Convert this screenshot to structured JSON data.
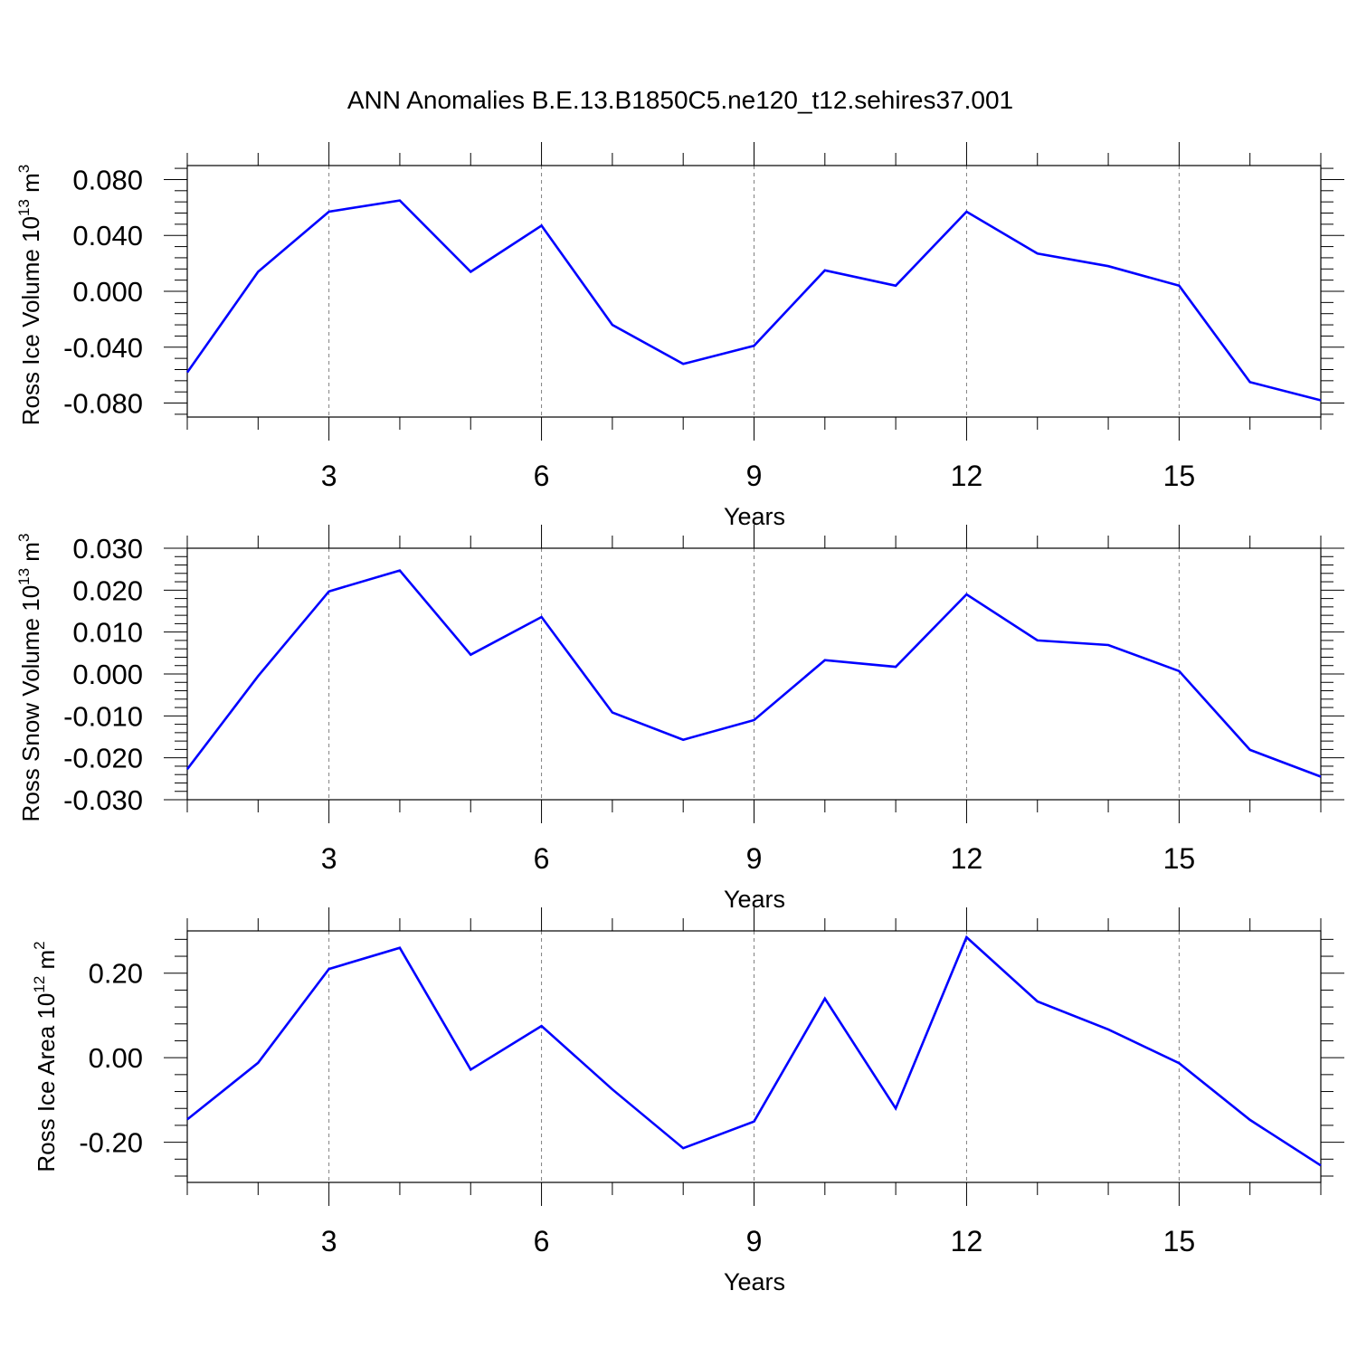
{
  "figure": {
    "title": "ANN Anomalies B.E.13.B1850C5.ne120_t12.sehires37.001"
  },
  "colors": {
    "series": "#0000ff",
    "axis": "#000000",
    "grid": "#808080",
    "background": "#ffffff"
  },
  "chart_data": [
    {
      "type": "line",
      "title": "",
      "xlabel": "Years",
      "ylabel": {
        "text": "Ross Ice Volume 10",
        "exponent": "13",
        "unit": " m",
        "unit_exponent": "3"
      },
      "xlim": [
        1,
        17
      ],
      "ylim": [
        -0.09,
        0.09
      ],
      "x_ticks": [
        3,
        6,
        9,
        12,
        15
      ],
      "x_tick_labels": [
        "3",
        "6",
        "9",
        "12",
        "15"
      ],
      "y_ticks": [
        -0.08,
        -0.04,
        0.0,
        0.04,
        0.08
      ],
      "y_tick_labels": [
        "-0.080",
        "-0.040",
        "0.000",
        "0.040",
        "0.080"
      ],
      "grid": "vertical dashed at labeled x ticks",
      "x": [
        1,
        2,
        3,
        4,
        5,
        6,
        7,
        8,
        9,
        10,
        11,
        12,
        13,
        14,
        15,
        16,
        17
      ],
      "series": [
        {
          "values": [
            -0.058,
            0.014,
            0.057,
            0.065,
            0.014,
            0.047,
            -0.024,
            -0.052,
            -0.039,
            0.015,
            0.004,
            0.057,
            0.027,
            0.018,
            0.004,
            -0.065,
            -0.078
          ]
        }
      ]
    },
    {
      "type": "line",
      "title": "",
      "xlabel": "Years",
      "ylabel": {
        "text": "Ross Snow Volume 10",
        "exponent": "13",
        "unit": " m",
        "unit_exponent": "3"
      },
      "xlim": [
        1,
        17
      ],
      "ylim": [
        -0.03,
        0.03
      ],
      "x_ticks": [
        3,
        6,
        9,
        12,
        15
      ],
      "x_tick_labels": [
        "3",
        "6",
        "9",
        "12",
        "15"
      ],
      "y_ticks": [
        -0.03,
        -0.02,
        -0.01,
        0.0,
        0.01,
        0.02,
        0.03
      ],
      "y_tick_labels": [
        "-0.030",
        "-0.020",
        "-0.010",
        "0.000",
        "0.010",
        "0.020",
        "0.030"
      ],
      "grid": "vertical dashed at labeled x ticks",
      "x": [
        1,
        2,
        3,
        4,
        5,
        6,
        7,
        8,
        9,
        10,
        11,
        12,
        13,
        14,
        15,
        16,
        17
      ],
      "series": [
        {
          "values": [
            -0.0227,
            -0.0005,
            0.0197,
            0.0247,
            0.0046,
            0.0136,
            -0.0092,
            -0.0157,
            -0.011,
            0.0033,
            0.0017,
            0.019,
            0.008,
            0.0069,
            0.0007,
            -0.0181,
            -0.0245
          ]
        }
      ]
    },
    {
      "type": "line",
      "title": "",
      "xlabel": "Years",
      "ylabel": {
        "text": "Ross Ice Area 10",
        "exponent": "12",
        "unit": " m",
        "unit_exponent": "2"
      },
      "xlim": [
        1,
        17
      ],
      "ylim": [
        -0.295,
        0.3
      ],
      "x_ticks": [
        3,
        6,
        9,
        12,
        15
      ],
      "x_tick_labels": [
        "3",
        "6",
        "9",
        "12",
        "15"
      ],
      "y_ticks": [
        -0.2,
        0.0,
        0.2
      ],
      "y_tick_labels": [
        "-0.20",
        "0.00",
        "0.20"
      ],
      "grid": "vertical dashed at labeled x ticks",
      "x": [
        1,
        2,
        3,
        4,
        5,
        6,
        7,
        8,
        9,
        10,
        11,
        12,
        13,
        14,
        15,
        16,
        17
      ],
      "series": [
        {
          "values": [
            -0.146,
            -0.012,
            0.21,
            0.26,
            -0.028,
            0.075,
            -0.075,
            -0.214,
            -0.151,
            0.14,
            -0.12,
            0.285,
            0.133,
            0.067,
            -0.013,
            -0.147,
            -0.255
          ]
        }
      ]
    }
  ]
}
